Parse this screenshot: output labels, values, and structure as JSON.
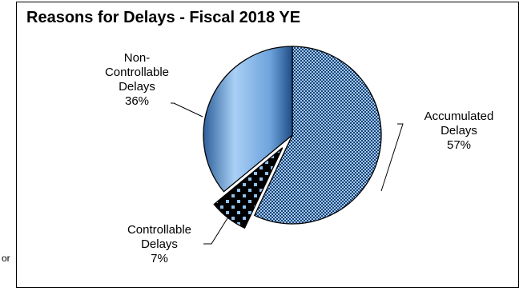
{
  "stray_text": "or",
  "chart_data": {
    "type": "pie",
    "title": "Reasons for Delays - Fiscal 2018 YE",
    "slices": [
      {
        "name": "Accumulated Delays",
        "value": 57,
        "label_lines": [
          "Accumulated",
          "Delays",
          "57%"
        ],
        "color": "#9ccbf4",
        "pattern": "checker",
        "exploded": false
      },
      {
        "name": "Controllable Delays",
        "value": 7,
        "label_lines": [
          "Controllable",
          "Delays",
          "7%"
        ],
        "color": "#000000",
        "pattern": "dots",
        "exploded": true
      },
      {
        "name": "Non-Controllable Delays",
        "value": 36,
        "label_lines": [
          "Non-",
          "Controllable",
          "Delays",
          "36%"
        ],
        "color": "#7fb2e8",
        "pattern": "gradient",
        "exploded": false
      }
    ],
    "start_angle": "12 o'clock",
    "direction": "clockwise",
    "legend": "none"
  }
}
